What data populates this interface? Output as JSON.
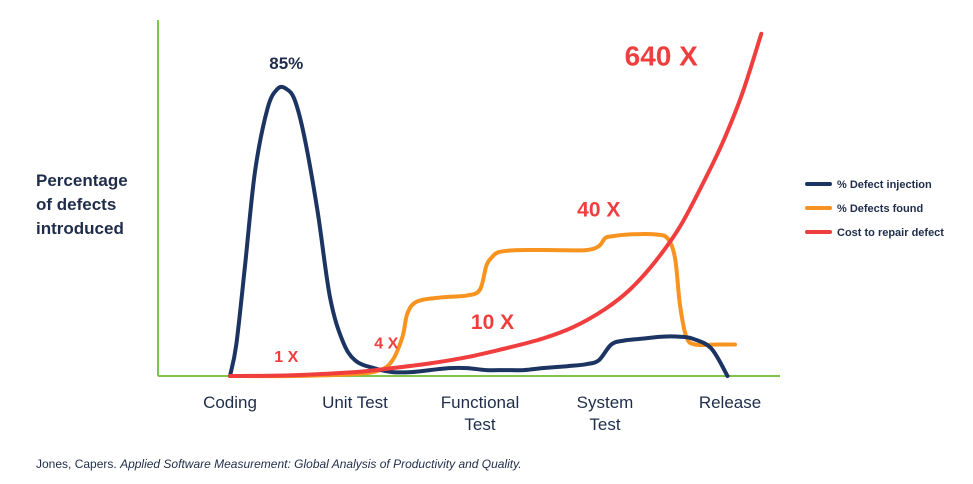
{
  "chart_data": {
    "type": "line",
    "ylabel": [
      "Percentage",
      "of defects",
      "introduced"
    ],
    "categories": [
      "Coding",
      "Unit Test",
      "Functional Test",
      "System Test",
      "Release"
    ],
    "category_lines": [
      [
        "Coding"
      ],
      [
        "Unit Test"
      ],
      [
        "Functional",
        "Test"
      ],
      [
        "System",
        "Test"
      ],
      [
        "Release"
      ]
    ],
    "grid": false,
    "legend_position": "right",
    "series": [
      {
        "name": "% Defect injection",
        "color": "#1b3461",
        "x": [
          0,
          0.05,
          0.12,
          0.2,
          0.3,
          0.38,
          0.45,
          0.52,
          0.6,
          0.7,
          0.8,
          0.9,
          1.0,
          1.15,
          1.3,
          1.45,
          1.6,
          1.75,
          1.9,
          2.05,
          2.2,
          2.35,
          2.5,
          2.7,
          2.85,
          2.95,
          3.05,
          3.15,
          3.3,
          3.45,
          3.6,
          3.7,
          3.85,
          3.98
        ],
        "y": [
          0,
          8,
          28,
          52,
          68,
          73,
          73,
          70,
          60,
          42,
          20,
          9,
          4,
          2,
          1,
          1,
          1.5,
          2,
          2,
          1.5,
          1.5,
          1.5,
          2,
          2.5,
          3,
          4,
          8,
          9,
          9.5,
          10,
          10,
          9.5,
          7,
          0
        ]
      },
      {
        "name": "% Defects found",
        "color": "#f7931e",
        "x": [
          0,
          0.5,
          1.0,
          1.2,
          1.3,
          1.38,
          1.42,
          1.5,
          1.7,
          1.9,
          2.0,
          2.05,
          2.09,
          2.15,
          2.3,
          2.6,
          2.85,
          2.95,
          3.0,
          3.05,
          3.2,
          3.4,
          3.5,
          3.56,
          3.6,
          3.65,
          3.72,
          3.9,
          4.04
        ],
        "y": [
          0,
          0,
          0.5,
          1.5,
          4,
          10,
          16,
          19,
          20,
          20.5,
          22,
          28,
          30,
          31.5,
          32,
          32,
          32,
          33,
          35,
          35.5,
          36,
          36,
          35,
          30,
          18,
          10,
          8,
          8,
          8
        ]
      },
      {
        "name": "Cost to repair defect",
        "color": "#f03e3e",
        "x": [
          0,
          0.5,
          1.0,
          1.3,
          1.6,
          1.9,
          2.2,
          2.5,
          2.75,
          3.0,
          3.2,
          3.4,
          3.6,
          3.8,
          3.95,
          4.1,
          4.25
        ],
        "y": [
          0,
          0.2,
          1,
          2,
          3.2,
          4.8,
          7,
          9.5,
          12.5,
          17,
          22,
          29,
          38,
          50,
          60,
          72,
          87
        ]
      }
    ],
    "annotations": [
      {
        "text": "85%",
        "x": 0.45,
        "y": 78,
        "color": "navy",
        "size": 17
      },
      {
        "text": "1 X",
        "x": 0.45,
        "y": 3.5,
        "color": "red",
        "size": 16
      },
      {
        "text": "4 X",
        "x": 1.25,
        "y": 7,
        "color": "red",
        "size": 16
      },
      {
        "text": "10 X",
        "x": 2.1,
        "y": 12,
        "color": "red",
        "size": 21
      },
      {
        "text": "40 X",
        "x": 2.95,
        "y": 40.5,
        "color": "red",
        "size": 21
      },
      {
        "text": "640 X",
        "x": 3.45,
        "y": 79,
        "color": "red",
        "size": 28
      }
    ]
  },
  "citation": {
    "author": "Jones, Capers.",
    "title": "Applied Software Measurement: Global Analysis of Productivity and Quality."
  }
}
